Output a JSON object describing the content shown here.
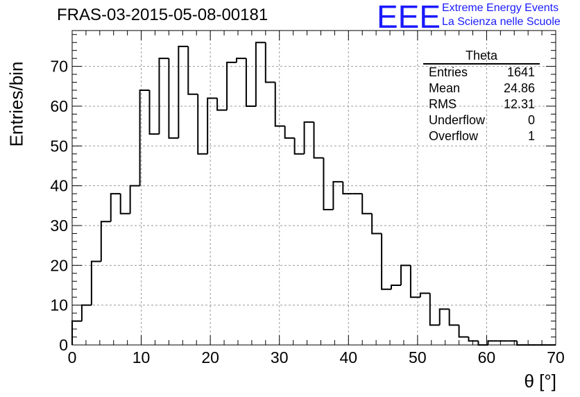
{
  "title": "FRAS-03-2015-05-08-00181",
  "logo": {
    "mark": "EEE",
    "line1": "Extreme Energy Events",
    "line2": "La Scienza nelle Scuole",
    "color": "#1a1aff"
  },
  "stats": {
    "name": "Theta",
    "rows": [
      {
        "label": "Entries",
        "value": "1641"
      },
      {
        "label": "Mean",
        "value": "24.86"
      },
      {
        "label": "RMS",
        "value": "12.31"
      },
      {
        "label": "Underflow",
        "value": "0"
      },
      {
        "label": "Overflow",
        "value": "1"
      }
    ]
  },
  "chart_data": {
    "type": "histogram",
    "title": "FRAS-03-2015-05-08-00181",
    "xlabel": "θ [°]",
    "ylabel": "Entries/bin",
    "xlim": [
      0,
      70
    ],
    "ylim": [
      0,
      79
    ],
    "xticks": [
      0,
      10,
      20,
      30,
      40,
      50,
      60,
      70
    ],
    "yticks": [
      0,
      10,
      20,
      30,
      40,
      50,
      60,
      70
    ],
    "grid": true,
    "bin_width": 1.4,
    "x_start": 0,
    "values": [
      6,
      10,
      21,
      31,
      38,
      33,
      40,
      64,
      53,
      72,
      52,
      75,
      63,
      48,
      62,
      59,
      71,
      72,
      60,
      76,
      66,
      55,
      52,
      48,
      56,
      47,
      34,
      41,
      38,
      38,
      33,
      28,
      14,
      15,
      20,
      12,
      13,
      5,
      9,
      5,
      2,
      1,
      0,
      1,
      1,
      1,
      0,
      0,
      0,
      0
    ],
    "line_color": "#000000"
  }
}
